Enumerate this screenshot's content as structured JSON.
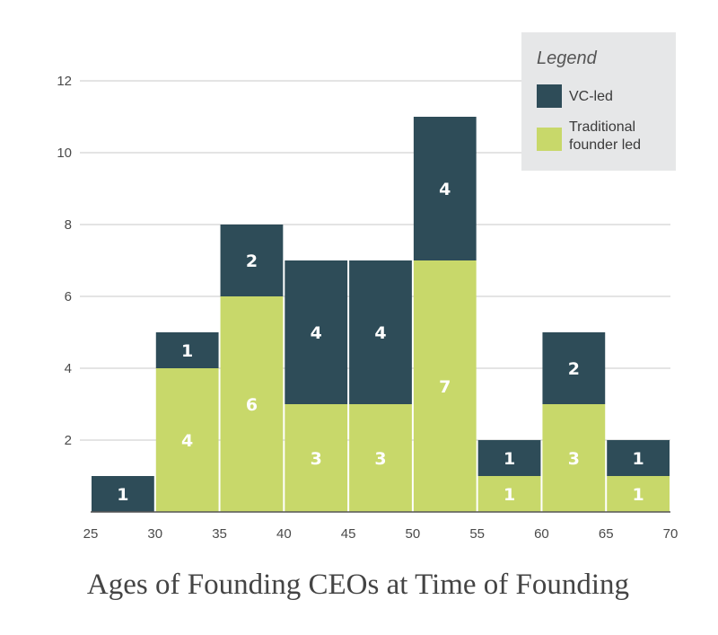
{
  "chart_data": {
    "type": "bar",
    "stacked": true,
    "histogram": true,
    "title": "Ages of Founding CEOs at Time of Founding",
    "xlabel": "",
    "ylabel": "",
    "bin_edges": [
      25,
      30,
      35,
      40,
      45,
      50,
      55,
      60,
      65,
      70
    ],
    "x_ticks": [
      "25",
      "30",
      "35",
      "40",
      "45",
      "50",
      "55",
      "60",
      "65",
      "70"
    ],
    "y_ticks": [
      "2",
      "4",
      "6",
      "8",
      "10",
      "12"
    ],
    "ylim": [
      0,
      12
    ],
    "grid": true,
    "legend": {
      "title": "Legend",
      "position": "top-right",
      "entries": [
        {
          "name": "VC-led",
          "lines": [
            "VC-led"
          ],
          "color": "#2e4c58"
        },
        {
          "name": "Traditional founder led",
          "lines": [
            "Traditional",
            "founder led"
          ],
          "color": "#c8d86a"
        }
      ]
    },
    "series": [
      {
        "name": "Traditional founder led",
        "color": "#c8d86a",
        "values": [
          0,
          4,
          6,
          3,
          3,
          7,
          1,
          3,
          1
        ]
      },
      {
        "name": "VC-led",
        "color": "#2e4c58",
        "values": [
          1,
          1,
          2,
          4,
          4,
          4,
          1,
          2,
          1
        ]
      }
    ]
  }
}
